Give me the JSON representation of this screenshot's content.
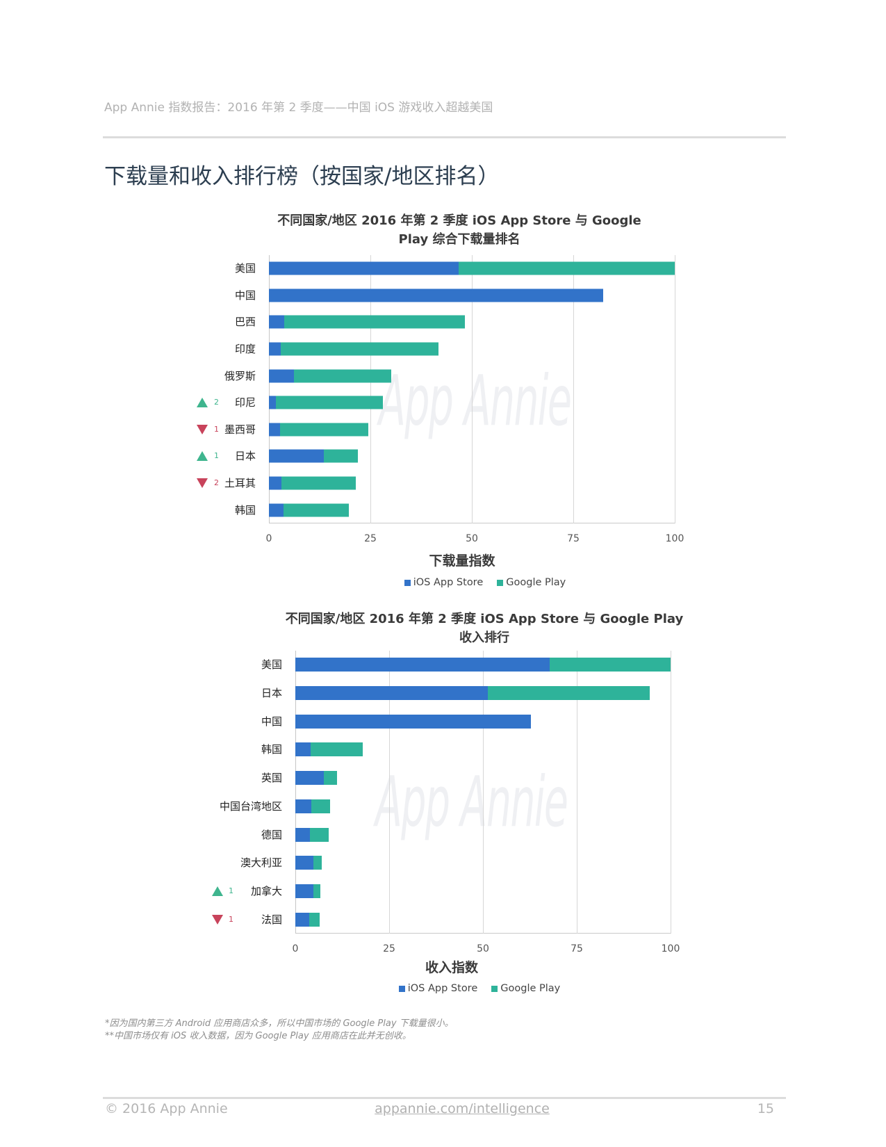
{
  "header": {
    "report_title": "App Annie 指数报告：2016 年第 2 季度——中国 iOS 游戏收入超越美国"
  },
  "page_title": "下载量和收入排行榜（按国家/地区排名）",
  "watermark": "App Annie",
  "colors": {
    "ios_app_store": "#3273c9",
    "google_play": "#2eb39a",
    "rank_up": "#3fb58e",
    "rank_down": "#c8435b"
  },
  "chart_data": [
    {
      "type": "bar",
      "orientation": "horizontal",
      "stacked": true,
      "title": "不同国家/地区 2016 年第 2 季度 iOS App Store 与 Google Play 综合下载量排名",
      "title_lines": [
        "不同国家/地区 2016 年第 2 季度 iOS App Store 与 Google",
        "Play 综合下载量排名"
      ],
      "categories": [
        "美国",
        "中国",
        "巴西",
        "印度",
        "俄罗斯",
        "印尼",
        "墨西哥",
        "日本",
        "土耳其",
        "韩国"
      ],
      "series": [
        {
          "name": "iOS App Store",
          "color": "#3273c9",
          "values": [
            46.7,
            82.3,
            3.8,
            2.9,
            6.2,
            1.7,
            2.7,
            13.5,
            3.1,
            3.6
          ]
        },
        {
          "name": "Google Play",
          "color": "#2eb39a",
          "values": [
            53.3,
            0,
            44.5,
            38.8,
            24.0,
            26.3,
            21.8,
            8.5,
            18.3,
            16.1
          ]
        }
      ],
      "rank_changes": [
        null,
        null,
        null,
        null,
        null,
        {
          "direction": "up",
          "places": 2
        },
        {
          "direction": "down",
          "places": 1
        },
        {
          "direction": "up",
          "places": 1
        },
        {
          "direction": "down",
          "places": 2
        },
        null
      ],
      "xlabel": "下载量指数",
      "ylabel": "",
      "xlim": [
        0,
        100
      ],
      "xticks": [
        0,
        25,
        50,
        75,
        100
      ],
      "grid": true,
      "legend_position": "bottom"
    },
    {
      "type": "bar",
      "orientation": "horizontal",
      "stacked": true,
      "title": "不同国家/地区 2016 年第 2 季度 iOS App Store 与 Google Play 收入排行",
      "title_lines": [
        "不同国家/地区 2016 年第 2 季度 iOS App Store 与 Google Play",
        "收入排行"
      ],
      "categories": [
        "美国",
        "日本",
        "中国",
        "韩国",
        "英国",
        "中国台湾地区",
        "德国",
        "澳大利亚",
        "加拿大",
        "法国"
      ],
      "series": [
        {
          "name": "iOS App Store",
          "color": "#3273c9",
          "values": [
            67.8,
            51.3,
            62.8,
            4.0,
            7.5,
            4.2,
            3.8,
            4.8,
            4.8,
            3.7
          ]
        },
        {
          "name": "Google Play",
          "color": "#2eb39a",
          "values": [
            32.2,
            43.1,
            0,
            13.9,
            3.7,
            5.0,
            5.0,
            2.2,
            1.9,
            2.7
          ]
        }
      ],
      "rank_changes": [
        null,
        null,
        null,
        null,
        null,
        null,
        null,
        null,
        {
          "direction": "up",
          "places": 1
        },
        {
          "direction": "down",
          "places": 1
        }
      ],
      "xlabel": "收入指数",
      "ylabel": "",
      "xlim": [
        0,
        100
      ],
      "xticks": [
        0,
        25,
        50,
        75,
        100
      ],
      "grid": true,
      "legend_position": "bottom"
    }
  ],
  "footnotes": [
    "*因为国内第三方 Android 应用商店众多，所以中国市场的 Google Play 下载量很小。",
    "**中国市场仅有 iOS 收入数据，因为 Google Play 应用商店在此并无创收。"
  ],
  "footer": {
    "copyright": "© 2016 App Annie",
    "link": "appannie.com/intelligence",
    "page_number": "15"
  }
}
